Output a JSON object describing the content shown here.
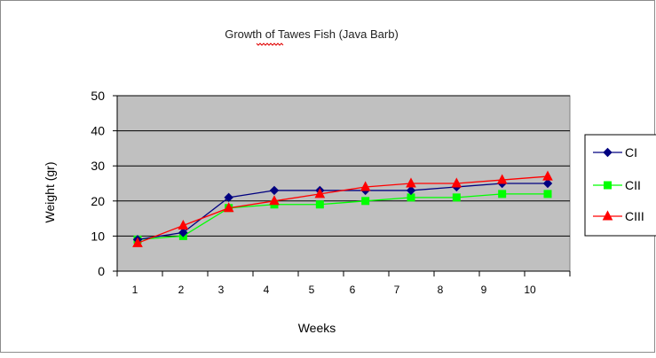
{
  "chart_data": {
    "type": "line",
    "title": "Growth of Tawes Fish (Java Barb)",
    "xlabel": "Weeks",
    "ylabel": "Weight (gr)",
    "ylim": [
      0,
      50
    ],
    "yticks": [
      0,
      10,
      20,
      30,
      40,
      50
    ],
    "categories": [
      "1",
      "2",
      "3",
      "4",
      "5",
      "6",
      "7",
      "8",
      "9",
      "10"
    ],
    "grid": "horizontal",
    "plot_background": "#c0c0c0",
    "legend_position": "right",
    "series": [
      {
        "name": "CI",
        "color": "#000080",
        "marker": "diamond",
        "values": [
          9,
          11,
          21,
          23,
          23,
          23,
          23,
          24,
          25,
          25
        ]
      },
      {
        "name": "CII",
        "color": "#00ff00",
        "marker": "square",
        "values": [
          9,
          10,
          18,
          19,
          19,
          20,
          21,
          21,
          22,
          22
        ]
      },
      {
        "name": "CIII",
        "color": "#ff0000",
        "marker": "triangle",
        "values": [
          8,
          13,
          18,
          20,
          22,
          24,
          25,
          25,
          26,
          27
        ]
      }
    ]
  }
}
